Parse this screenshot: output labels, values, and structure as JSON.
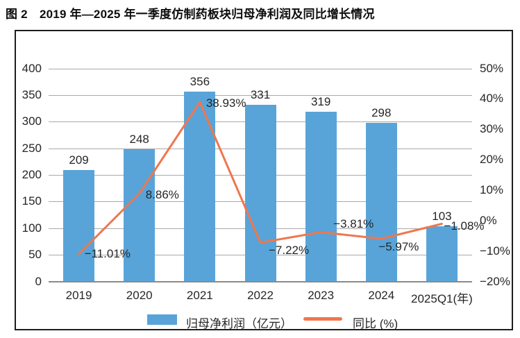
{
  "figure": {
    "title": "图 2　2019 年—2025 年一季度仿制药板块归母净利润及同比增长情况"
  },
  "chart_data": {
    "type": "bar+line combo",
    "categories": [
      "2019",
      "2020",
      "2021",
      "2022",
      "2023",
      "2024",
      "2025Q1(年)"
    ],
    "series": [
      {
        "name": "归母净利润（亿元）",
        "type": "bar",
        "axis": "left",
        "values": [
          209,
          248,
          356,
          331,
          319,
          298,
          103
        ],
        "color": "#58A4D8"
      },
      {
        "name": "同比 (%)",
        "type": "line",
        "axis": "right",
        "values": [
          -11.01,
          8.86,
          38.93,
          -7.22,
          -3.81,
          -5.97,
          -1.08
        ],
        "color": "#F0764E"
      }
    ],
    "bar_value_labels": [
      "209",
      "248",
      "356",
      "331",
      "319",
      "298",
      "103"
    ],
    "line_value_labels": [
      "−11.01%",
      "8.86%",
      "38.93%",
      "−7.22%",
      "−3.81%",
      "−5.97%",
      "−1.08%"
    ],
    "left_axis": {
      "ticks": [
        "400",
        "350",
        "300",
        "250",
        "200",
        "150",
        "100",
        "50",
        "0"
      ],
      "min": 0,
      "max": 400
    },
    "right_axis": {
      "ticks": [
        "50%",
        "40%",
        "30%",
        "20%",
        "10%",
        "0%",
        "−10%",
        "−20%"
      ],
      "min": -20,
      "max": 50
    },
    "grid": true,
    "legend_position": "bottom",
    "legend": [
      {
        "label": "归母净利润（亿元）",
        "marker": "bar",
        "color": "#58A4D8"
      },
      {
        "label": "同比 (%)",
        "marker": "line",
        "color": "#F0764E"
      }
    ]
  }
}
